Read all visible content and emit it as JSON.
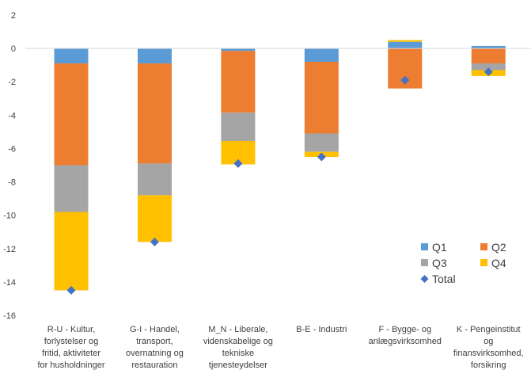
{
  "chart_data": {
    "type": "bar",
    "stacked": true,
    "categories": [
      "R-U - Kultur, forlystelser og fritid, aktiviteter for husholdninger",
      "G-I - Handel, transport, overnatning og restauration",
      "M_N - Liberale, videnskabelige og tekniske tjenesteydelser",
      "B-E - Industri",
      "F - Bygge- og anlægsvirksomhed",
      "K - Pengeinstitut og finansvirksomhed, forsikring"
    ],
    "category_lines": [
      [
        "R-U - Kultur,",
        "forlystelser og",
        "fritid, aktiviteter",
        "for husholdninger"
      ],
      [
        "G-I - Handel,",
        "transport,",
        "overnatning og",
        "restauration"
      ],
      [
        "M_N - Liberale,",
        "videnskabelige og",
        "tekniske",
        "tjenesteydelser"
      ],
      [
        "B-E - Industri"
      ],
      [
        "F - Bygge- og",
        "anlægsvirksomhed"
      ],
      [
        "K - Pengeinstitut",
        "og",
        "finansvirksomhed,",
        "forsikring"
      ]
    ],
    "series": [
      {
        "name": "Q1",
        "color": "#5B9BD5",
        "values": [
          -0.9,
          -0.9,
          -0.15,
          -0.8,
          0.4,
          0.15
        ]
      },
      {
        "name": "Q2",
        "color": "#ED7D31",
        "values": [
          -6.1,
          -6.0,
          -3.7,
          -4.3,
          -2.4,
          -0.9
        ]
      },
      {
        "name": "Q3",
        "color": "#A5A5A5",
        "values": [
          -2.8,
          -1.9,
          -1.7,
          -1.1,
          0.0,
          -0.4
        ]
      },
      {
        "name": "Q4",
        "color": "#FFC000",
        "values": [
          -4.7,
          -2.8,
          -1.4,
          -0.3,
          0.1,
          -0.35
        ]
      }
    ],
    "total": {
      "name": "Total",
      "color": "#4472C4",
      "values": [
        -14.5,
        -11.6,
        -6.9,
        -6.5,
        -1.9,
        -1.4
      ]
    },
    "y_ticks": [
      "2",
      "0",
      "-2",
      "-4",
      "-6",
      "-8",
      "-10",
      "-12",
      "-14",
      "-16"
    ],
    "ylim": [
      -16,
      2
    ],
    "xlabel": "",
    "ylabel": "",
    "title": "",
    "grid": false,
    "legend_position": "bottom-right"
  }
}
